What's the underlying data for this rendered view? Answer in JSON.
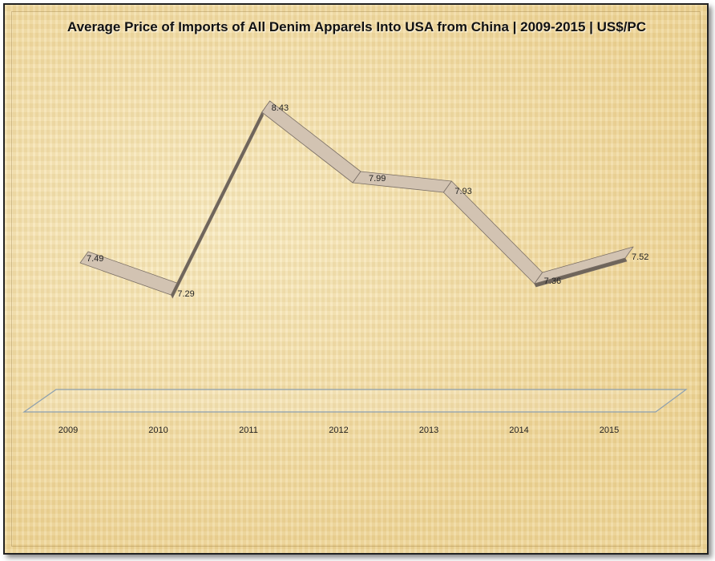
{
  "chart_data": {
    "type": "line",
    "title": "Average Price of Imports of All Denim Apparels Into USA from China | 2009-2015 | US$/PC",
    "categories": [
      "2009",
      "2010",
      "2011",
      "2012",
      "2013",
      "2014",
      "2015"
    ],
    "series": [
      {
        "values": [
          7.49,
          7.29,
          8.43,
          7.99,
          7.93,
          7.36,
          7.52
        ]
      }
    ],
    "data_labels": [
      "7.49",
      "7.29",
      "8.43",
      "7.99",
      "7.93",
      "7.36",
      "7.52"
    ],
    "ylim": [
      6.3,
      8.7
    ],
    "style": "3d-ribbon",
    "colors": {
      "ribbon_top": "#d2c3b2",
      "ribbon_side": "#6f655b",
      "ribbon_edge": "#7a6f66",
      "floor_edge": "#8b9fb0"
    },
    "grid": false,
    "legend": "none"
  }
}
